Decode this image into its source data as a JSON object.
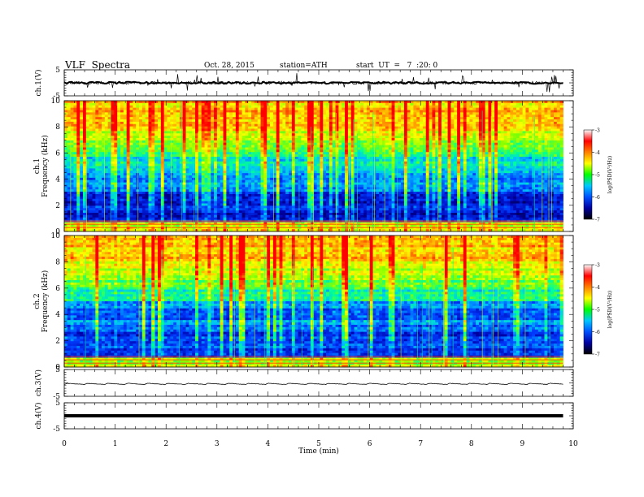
{
  "header": {
    "title": "VLF  Spectra",
    "date": "Oct. 28, 2015",
    "station": "station=ATH",
    "start": "start  UT  =   7  :20: 0"
  },
  "colorbar": {
    "label": "log(PSD(V²/Hz)",
    "ticks": [
      "-3",
      "-4",
      "-5",
      "-6",
      "-7"
    ],
    "colors": [
      "#fbfbfb",
      "#ff0000",
      "#ff7f00",
      "#ffff00",
      "#00ff00",
      "#00c8ff",
      "#0050ff",
      "#0000a0",
      "#000000"
    ]
  },
  "chart_data": [
    {
      "type": "line",
      "name": "ch1-waveform",
      "ylabel": "ch.1(V)",
      "ylim": [
        -5,
        5
      ],
      "yticks": [
        "5",
        "-5"
      ]
    },
    {
      "type": "heatmap",
      "name": "ch1-spectrogram",
      "ylabel_top": "ch.1",
      "ylabel": "Frequency (kHz)",
      "ylim": [
        0,
        10
      ],
      "yticks": [
        "10",
        "8",
        "6",
        "4",
        "2",
        "0"
      ],
      "zlim": [
        -7,
        -3
      ]
    },
    {
      "type": "heatmap",
      "name": "ch2-spectrogram",
      "ylabel_top": "ch.2",
      "ylabel": "Frequency (kHz)",
      "ylim": [
        0,
        10
      ],
      "yticks": [
        "10",
        "8",
        "6",
        "4",
        "2",
        "0"
      ],
      "zlim": [
        -7,
        -3
      ]
    },
    {
      "type": "line",
      "name": "ch3-waveform",
      "ylabel": "ch.3(V)",
      "ylim": [
        -5,
        5
      ],
      "yticks": [
        "5",
        "-5"
      ]
    },
    {
      "type": "line",
      "name": "ch4-waveform",
      "ylabel": "ch.4(V)",
      "ylim": [
        -5,
        5
      ],
      "yticks": [
        "5",
        "-5"
      ]
    }
  ],
  "xaxis": {
    "label": "Time  (min)",
    "xlim": [
      0,
      10
    ],
    "ticks": [
      "0",
      "1",
      "2",
      "3",
      "4",
      "5",
      "6",
      "7",
      "8",
      "9",
      "10"
    ],
    "data_end": 9.8
  }
}
